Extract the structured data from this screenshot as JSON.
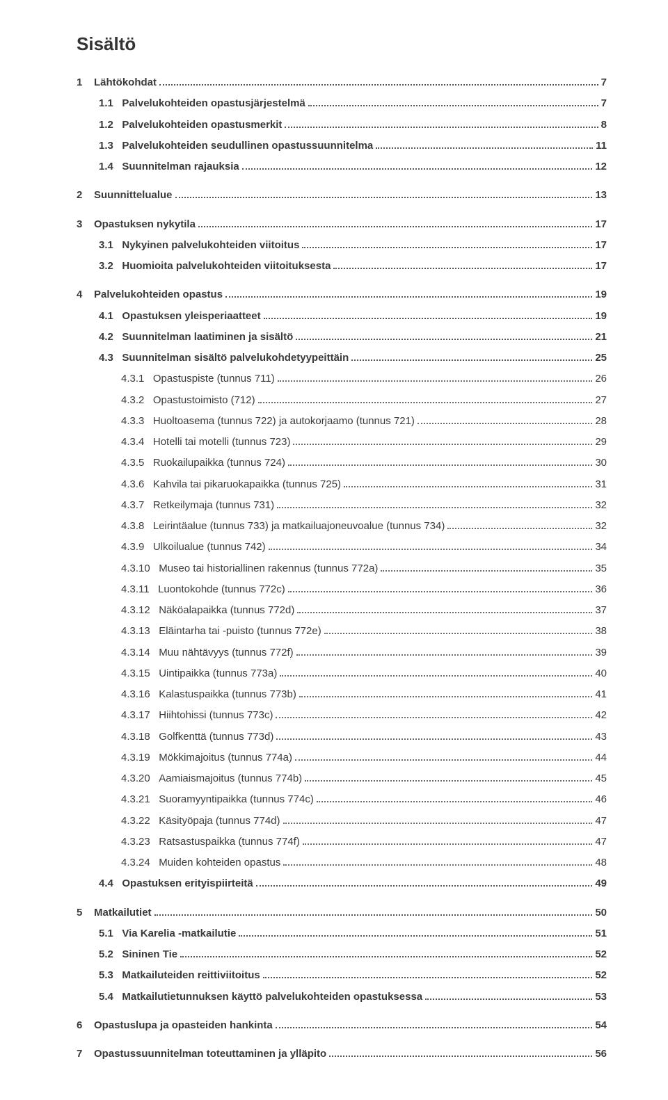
{
  "title": "Sisältö",
  "colors": {
    "text": "#333333",
    "leader": "#6b6b6b",
    "background": "#ffffff"
  },
  "typography": {
    "title_fontsize_pt": 20,
    "body_fontsize_pt": 11,
    "font_family": "Arial"
  },
  "toc": [
    {
      "level": 1,
      "num": "1",
      "label": "Lähtökohdat",
      "page": "7",
      "bold": true
    },
    {
      "level": 2,
      "num": "1.1",
      "label": "Palvelukohteiden opastusjärjestelmä",
      "page": "7",
      "bold": true
    },
    {
      "level": 2,
      "num": "1.2",
      "label": "Palvelukohteiden opastusmerkit",
      "page": "8",
      "bold": true
    },
    {
      "level": 2,
      "num": "1.3",
      "label": "Palvelukohteiden seudullinen opastussuunnitelma",
      "page": "11",
      "bold": true
    },
    {
      "level": 2,
      "num": "1.4",
      "label": "Suunnitelman rajauksia",
      "page": "12",
      "bold": true
    },
    {
      "level": 1,
      "num": "2",
      "label": "Suunnittelualue",
      "page": "13",
      "bold": true
    },
    {
      "level": 1,
      "num": "3",
      "label": "Opastuksen nykytila",
      "page": "17",
      "bold": true
    },
    {
      "level": 2,
      "num": "3.1",
      "label": "Nykyinen palvelukohteiden viitoitus",
      "page": "17",
      "bold": true
    },
    {
      "level": 2,
      "num": "3.2",
      "label": "Huomioita palvelukohteiden viitoituksesta",
      "page": "17",
      "bold": true
    },
    {
      "level": 1,
      "num": "4",
      "label": "Palvelukohteiden opastus",
      "page": "19",
      "bold": true
    },
    {
      "level": 2,
      "num": "4.1",
      "label": "Opastuksen yleisperiaatteet",
      "page": "19",
      "bold": true
    },
    {
      "level": 2,
      "num": "4.2",
      "label": "Suunnitelman laatiminen ja sisältö",
      "page": "21",
      "bold": true
    },
    {
      "level": 2,
      "num": "4.3",
      "label": "Suunnitelman sisältö palvelukohdetyypeittäin",
      "page": "25",
      "bold": true
    },
    {
      "level": 3,
      "num": "4.3.1",
      "label": "Opastuspiste (tunnus 711)",
      "page": "26",
      "bold": false
    },
    {
      "level": 3,
      "num": "4.3.2",
      "label": "Opastustoimisto (712)",
      "page": "27",
      "bold": false
    },
    {
      "level": 3,
      "num": "4.3.3",
      "label": "Huoltoasema (tunnus 722) ja autokorjaamo (tunnus 721)",
      "page": "28",
      "bold": false
    },
    {
      "level": 3,
      "num": "4.3.4",
      "label": "Hotelli tai motelli (tunnus 723)",
      "page": "29",
      "bold": false
    },
    {
      "level": 3,
      "num": "4.3.5",
      "label": "Ruokailupaikka (tunnus 724)",
      "page": "30",
      "bold": false
    },
    {
      "level": 3,
      "num": "4.3.6",
      "label": "Kahvila tai pikaruokapaikka (tunnus 725)",
      "page": "31",
      "bold": false
    },
    {
      "level": 3,
      "num": "4.3.7",
      "label": "Retkeilymaja (tunnus 731)",
      "page": "32",
      "bold": false
    },
    {
      "level": 3,
      "num": "4.3.8",
      "label": "Leirintäalue (tunnus 733) ja  matkailuajoneuvoalue (tunnus 734)",
      "page": "32",
      "bold": false
    },
    {
      "level": 3,
      "num": "4.3.9",
      "label": "Ulkoilualue (tunnus 742)",
      "page": "34",
      "bold": false
    },
    {
      "level": 3,
      "num": "4.3.10",
      "label": "Museo tai historiallinen rakennus (tunnus 772a)",
      "page": "35",
      "bold": false
    },
    {
      "level": 3,
      "num": "4.3.11",
      "label": "Luontokohde (tunnus 772c)",
      "page": "36",
      "bold": false
    },
    {
      "level": 3,
      "num": "4.3.12",
      "label": "Näköalapaikka (tunnus 772d)",
      "page": "37",
      "bold": false
    },
    {
      "level": 3,
      "num": "4.3.13",
      "label": "Eläintarha tai -puisto (tunnus 772e)",
      "page": "38",
      "bold": false
    },
    {
      "level": 3,
      "num": "4.3.14",
      "label": "Muu nähtävyys (tunnus 772f)",
      "page": "39",
      "bold": false
    },
    {
      "level": 3,
      "num": "4.3.15",
      "label": "Uintipaikka (tunnus 773a)",
      "page": "40",
      "bold": false
    },
    {
      "level": 3,
      "num": "4.3.16",
      "label": "Kalastuspaikka (tunnus 773b)",
      "page": "41",
      "bold": false
    },
    {
      "level": 3,
      "num": "4.3.17",
      "label": "Hiihtohissi (tunnus 773c)",
      "page": "42",
      "bold": false
    },
    {
      "level": 3,
      "num": "4.3.18",
      "label": "Golfkenttä (tunnus 773d)",
      "page": "43",
      "bold": false
    },
    {
      "level": 3,
      "num": "4.3.19",
      "label": "Mökkimajoitus (tunnus 774a)",
      "page": "44",
      "bold": false
    },
    {
      "level": 3,
      "num": "4.3.20",
      "label": "Aamiaismajoitus (tunnus 774b)",
      "page": "45",
      "bold": false
    },
    {
      "level": 3,
      "num": "4.3.21",
      "label": "Suoramyyntipaikka (tunnus 774c)",
      "page": "46",
      "bold": false
    },
    {
      "level": 3,
      "num": "4.3.22",
      "label": "Käsityöpaja (tunnus 774d)",
      "page": "47",
      "bold": false
    },
    {
      "level": 3,
      "num": "4.3.23",
      "label": "Ratsastuspaikka (tunnus 774f)",
      "page": "47",
      "bold": false
    },
    {
      "level": 3,
      "num": "4.3.24",
      "label": "Muiden kohteiden opastus",
      "page": "48",
      "bold": false
    },
    {
      "level": 2,
      "num": "4.4",
      "label": "Opastuksen erityispiirteitä",
      "page": "49",
      "bold": true
    },
    {
      "level": 1,
      "num": "5",
      "label": "Matkailutiet",
      "page": "50",
      "bold": true
    },
    {
      "level": 2,
      "num": "5.1",
      "label": "Via Karelia -matkailutie",
      "page": "51",
      "bold": true
    },
    {
      "level": 2,
      "num": "5.2",
      "label": "Sininen Tie",
      "page": "52",
      "bold": true
    },
    {
      "level": 2,
      "num": "5.3",
      "label": "Matkailuteiden reittiviitoitus",
      "page": "52",
      "bold": true
    },
    {
      "level": 2,
      "num": "5.4",
      "label": "Matkailutietunnuksen käyttö palvelukohteiden opastuksessa",
      "page": "53",
      "bold": true
    },
    {
      "level": 1,
      "num": "6",
      "label": "Opastuslupa ja opasteiden hankinta",
      "page": "54",
      "bold": true
    },
    {
      "level": 1,
      "num": "7",
      "label": "Opastussuunnitelman toteuttaminen ja ylläpito",
      "page": "56",
      "bold": true
    }
  ]
}
